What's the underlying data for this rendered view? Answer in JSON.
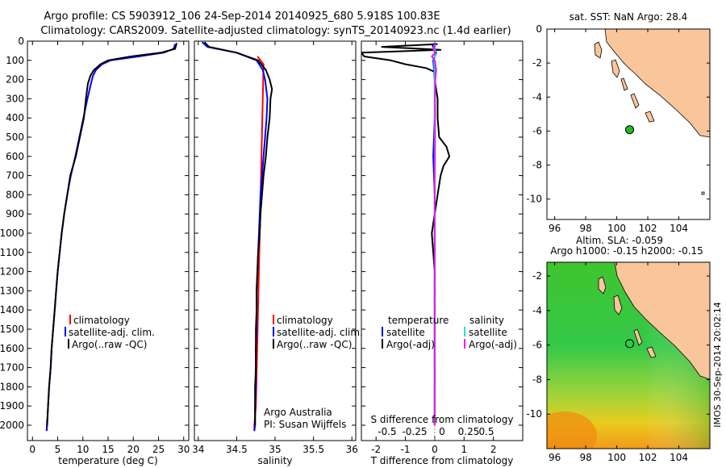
{
  "header": {
    "title_line1": "Argo profile: CS 5903912_106 24-Sep-2014 20140925_680 5.918S 100.83E",
    "title_line2": "Climatology: CARS2009. Satellite-adjusted climatology: synTS_20140923.nc (1.4d earlier)"
  },
  "footer": {
    "stamp": "IMOS 30-Sep-2014 20:02:14"
  },
  "colors": {
    "climatology": "#ff0000",
    "satellite": "#0000ff",
    "argo": "#000000",
    "salinity_satellite": "#00e5e5",
    "salinity_argo": "#ff00ff",
    "land": "#f9c59a",
    "float_marker": "#22bb22"
  },
  "chart_data": [
    {
      "id": "temperature",
      "type": "line",
      "xlabel": "temperature (deg C)",
      "ylabel": "",
      "xlim": [
        -1,
        31
      ],
      "ylim": [
        2080,
        0
      ],
      "xticks": [
        0,
        5,
        10,
        15,
        20,
        25,
        30
      ],
      "yticks": [
        0,
        100,
        200,
        300,
        400,
        500,
        600,
        700,
        800,
        900,
        1000,
        1100,
        1200,
        1300,
        1400,
        1500,
        1600,
        1700,
        1800,
        1900,
        2000
      ],
      "legend": [
        "climatology",
        "satellite-adj. clim.",
        "Argo(..raw -QC)"
      ],
      "series": [
        {
          "name": "climatology",
          "color": "#ff0000",
          "depth": [
            1970,
            2000,
            2030
          ],
          "values": [
            2.9,
            2.85,
            2.8
          ]
        },
        {
          "name": "satellite-adj. clim.",
          "color": "#0000ff",
          "depth": [
            15,
            40,
            60,
            80,
            100,
            120,
            150,
            180,
            220,
            300,
            400,
            500,
            600,
            700,
            800,
            900,
            1000,
            1100,
            1200,
            1300,
            1400,
            1500,
            1600,
            1700,
            1800,
            1900,
            2000,
            2030
          ],
          "values": [
            28.3,
            28.0,
            26.0,
            21.0,
            15.5,
            13.8,
            12.6,
            12.0,
            11.6,
            10.9,
            10.1,
            9.3,
            8.5,
            7.6,
            6.9,
            6.3,
            5.8,
            5.4,
            5.0,
            4.7,
            4.4,
            4.1,
            3.8,
            3.6,
            3.3,
            3.1,
            2.9,
            2.8
          ]
        },
        {
          "name": "Argo(..raw -QC)",
          "color": "#000000",
          "depth": [
            10,
            40,
            60,
            80,
            100,
            120,
            150,
            180,
            220,
            300,
            400,
            500,
            600,
            700,
            800,
            900,
            1000,
            1100,
            1200,
            1300,
            1400,
            1500,
            1600,
            1700,
            1800,
            1900,
            2000
          ],
          "values": [
            28.6,
            28.3,
            25.5,
            19.5,
            15.0,
            13.5,
            12.2,
            11.5,
            11.0,
            10.6,
            10.2,
            9.4,
            8.6,
            7.5,
            6.9,
            6.3,
            5.8,
            5.4,
            5.0,
            4.7,
            4.4,
            4.1,
            3.8,
            3.6,
            3.3,
            3.1,
            2.9
          ]
        }
      ]
    },
    {
      "id": "salinity",
      "type": "line",
      "xlabel": "salinity",
      "xlim": [
        33.95,
        36.05
      ],
      "ylim": [
        2080,
        0
      ],
      "xticks": [
        34,
        34.5,
        35,
        35.5,
        36
      ],
      "legend": [
        "climatology",
        "satellite-adj. clim.",
        "Argo(..raw -QC)"
      ],
      "annotation": [
        "Argo Australia",
        "PI: Susan Wijffels"
      ],
      "series": [
        {
          "name": "climatology",
          "color": "#ff0000",
          "depth": [
            80,
            120,
            1900,
            2000,
            2030
          ],
          "values": [
            34.77,
            34.85,
            34.75,
            34.73,
            34.73
          ]
        },
        {
          "name": "satellite-adj. clim.",
          "color": "#0000ff",
          "depth": [
            5,
            30,
            60,
            100,
            150,
            200,
            300,
            400,
            500,
            600,
            700,
            800,
            900,
            1000,
            1100,
            1200,
            1300,
            1400,
            1500,
            1600,
            1700,
            1800,
            1900,
            2000,
            2030
          ],
          "values": [
            34.05,
            34.12,
            34.5,
            34.76,
            34.84,
            34.87,
            34.9,
            34.89,
            34.87,
            34.85,
            34.83,
            34.81,
            34.8,
            34.79,
            34.78,
            34.77,
            34.76,
            34.76,
            34.76,
            34.75,
            34.75,
            34.75,
            34.74,
            34.74,
            34.73
          ]
        },
        {
          "name": "Argo(..raw -QC)",
          "color": "#000000",
          "depth": [
            5,
            30,
            60,
            100,
            150,
            200,
            250,
            300,
            400,
            500,
            600,
            700,
            800,
            900,
            1000,
            1100,
            1200,
            1300,
            1400,
            1500,
            1600,
            1700,
            1800,
            1900,
            2000
          ],
          "values": [
            34.08,
            34.14,
            34.5,
            34.78,
            34.88,
            34.93,
            34.96,
            34.94,
            34.93,
            34.9,
            34.88,
            34.85,
            34.83,
            34.81,
            34.8,
            34.78,
            34.77,
            34.76,
            34.76,
            34.75,
            34.75,
            34.75,
            34.74,
            34.74,
            34.74
          ]
        }
      ]
    },
    {
      "id": "difference",
      "type": "line",
      "xlabel": "T difference from climatology",
      "top_label": "S difference from climatology",
      "xlim": [
        -2.5,
        3
      ],
      "ylim": [
        2080,
        0
      ],
      "xticks": [
        -2,
        -1,
        0,
        1,
        2
      ],
      "top_ticks": [
        "-0.5",
        "-0.25",
        "0",
        "0.25",
        "0.5"
      ],
      "legend": {
        "temperature_header": "temperature",
        "salinity_header": "salinity",
        "items": [
          "satellite",
          "Argo(-adj)",
          "satellite",
          "Argo(-adj)"
        ]
      },
      "series": [
        {
          "name": "T satellite",
          "color": "#0000ff",
          "depth": [
            15,
            60,
            100,
            200,
            400,
            600,
            800,
            1000,
            1200,
            1400,
            1600,
            1800,
            2000
          ],
          "values": [
            -0.1,
            0.05,
            -0.05,
            0.0,
            0.0,
            -0.05,
            0.0,
            0.0,
            0.0,
            0.0,
            0.0,
            0.0,
            0.0
          ]
        },
        {
          "name": "T Argo(-adj)",
          "color": "#000000",
          "depth": [
            15,
            30,
            45,
            60,
            80,
            100,
            120,
            140,
            160,
            200,
            250,
            300,
            400,
            500,
            550,
            600,
            650,
            700,
            800,
            900,
            1000,
            1200,
            1400,
            1600,
            1800,
            2000
          ],
          "values": [
            0.1,
            -1.8,
            0.2,
            -2.5,
            -2.4,
            -1.5,
            -1.0,
            -0.3,
            0.0,
            0.0,
            0.05,
            0.1,
            0.1,
            0.15,
            0.4,
            0.5,
            0.3,
            0.2,
            0.1,
            0.0,
            -0.1,
            0.0,
            0.0,
            0.0,
            0.0,
            0.0
          ]
        },
        {
          "name": "S satellite",
          "color": "#00e5e5",
          "depth": [
            15,
            60,
            100,
            200,
            400,
            600,
            800,
            1000,
            1200,
            1400,
            1600,
            1800,
            2000
          ],
          "values": [
            0.0,
            0.02,
            -0.02,
            0.0,
            0.0,
            0.0,
            0.0,
            0.0,
            0.0,
            0.0,
            0.0,
            0.0,
            0.0
          ]
        },
        {
          "name": "S Argo(-adj)",
          "color": "#ff00ff",
          "depth": [
            15,
            40,
            60,
            80,
            100,
            150,
            200,
            300,
            500,
            700,
            1000,
            1500,
            2000
          ],
          "values": [
            0.03,
            -0.05,
            0.01,
            -0.1,
            0.0,
            0.05,
            0.02,
            0.01,
            0.01,
            0.0,
            0.0,
            0.0,
            0.0
          ]
        }
      ]
    },
    {
      "id": "sst_map",
      "type": "map",
      "title": "sat. SST: NaN Argo: 28.4",
      "xlim": [
        95.5,
        106
      ],
      "ylim": [
        -11.2,
        0
      ],
      "xticks": [
        96,
        98,
        100,
        102,
        104
      ],
      "yticks": [
        0,
        -2,
        -4,
        -6,
        -8,
        -10
      ],
      "float_position": [
        100.83,
        -5.918
      ]
    },
    {
      "id": "sla_map",
      "type": "heatmap",
      "title_line1": "Altim. SLA: -0.059",
      "title_line2": "Argo h1000: -0.15 h2000: -0.15",
      "xlim": [
        95.5,
        106
      ],
      "ylim": [
        -12,
        -1.2
      ],
      "xticks": [
        96,
        98,
        100,
        102,
        104
      ],
      "yticks": [
        -2,
        -4,
        -6,
        -8,
        -10
      ],
      "float_position": [
        100.83,
        -5.918
      ]
    }
  ]
}
